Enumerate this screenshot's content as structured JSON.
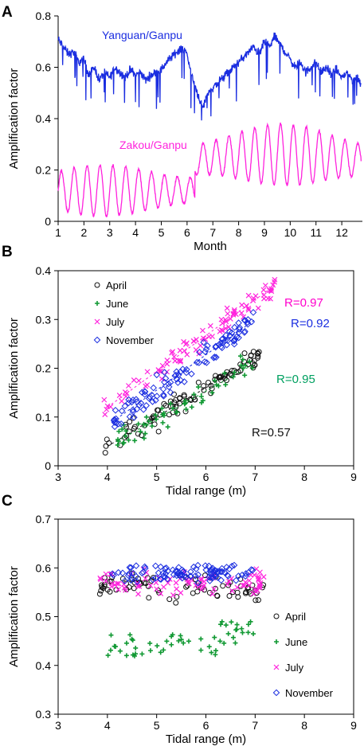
{
  "colors": {
    "blue": "#1a2de0",
    "magenta": "#ff22dd",
    "green": "#119933",
    "black": "#111111",
    "r_july": "#ff00cc",
    "r_november": "#1b2ee0",
    "r_june": "#00a060",
    "r_april": "#111111"
  },
  "chart_data": [
    {
      "panel": "A",
      "type": "line",
      "xlabel": "Month",
      "ylabel": "Amplification factor",
      "xlim": [
        1,
        12.8
      ],
      "ylim": [
        0,
        0.8
      ],
      "xticks": [
        1,
        2,
        3,
        4,
        5,
        6,
        7,
        8,
        9,
        10,
        11,
        12
      ],
      "yticks": [
        0,
        0.2,
        0.4,
        0.6,
        0.8
      ],
      "series": [
        {
          "name": "Yanguan/Ganpu",
          "color": "blue",
          "x": [
            1.0,
            1.2,
            1.4,
            1.6,
            1.8,
            2.0,
            2.2,
            2.4,
            2.6,
            2.8,
            3.0,
            3.2,
            3.4,
            3.6,
            3.8,
            4.0,
            4.2,
            4.4,
            4.6,
            4.8,
            5.0,
            5.2,
            5.4,
            5.6,
            5.8,
            6.0,
            6.2,
            6.4,
            6.6,
            6.8,
            7.0,
            7.2,
            7.4,
            7.6,
            7.8,
            8.0,
            8.2,
            8.4,
            8.6,
            8.8,
            9.0,
            9.2,
            9.4,
            9.6,
            9.8,
            10.0,
            10.2,
            10.4,
            10.6,
            10.8,
            11.0,
            11.2,
            11.4,
            11.6,
            11.8,
            12.0,
            12.2,
            12.4,
            12.6,
            12.75
          ],
          "y": [
            0.71,
            0.68,
            0.65,
            0.66,
            0.62,
            0.63,
            0.57,
            0.6,
            0.55,
            0.58,
            0.56,
            0.6,
            0.58,
            0.56,
            0.59,
            0.57,
            0.58,
            0.55,
            0.57,
            0.58,
            0.59,
            0.62,
            0.64,
            0.66,
            0.68,
            0.65,
            0.56,
            0.5,
            0.44,
            0.5,
            0.52,
            0.54,
            0.56,
            0.58,
            0.6,
            0.62,
            0.64,
            0.66,
            0.68,
            0.65,
            0.7,
            0.68,
            0.72,
            0.69,
            0.66,
            0.63,
            0.6,
            0.62,
            0.58,
            0.6,
            0.62,
            0.58,
            0.6,
            0.57,
            0.59,
            0.56,
            0.58,
            0.55,
            0.56,
            0.53
          ]
        },
        {
          "name": "Zakou/Ganpu",
          "color": "magenta",
          "period": 0.5,
          "mean_before_6_3": 0.12,
          "amplitude_before_6_3": 0.1,
          "mean_after_6_3": 0.24,
          "amplitude_after_6_3": 0.12,
          "peaks": [
            [
              1.8,
              0.2
            ],
            [
              2.8,
              0.25
            ],
            [
              4.3,
              0.22
            ],
            [
              5.3,
              0.22
            ],
            [
              8.3,
              0.36
            ],
            [
              9.3,
              0.4
            ],
            [
              10.2,
              0.34
            ],
            [
              12.6,
              0.22
            ]
          ],
          "troughs": [
            [
              1.3,
              0.02
            ],
            [
              3.3,
              0.0
            ],
            [
              4.7,
              0.0
            ],
            [
              5.8,
              0.02
            ],
            [
              7.0,
              0.08
            ],
            [
              9.0,
              0.1
            ],
            [
              11.0,
              0.07
            ],
            [
              12.3,
              0.06
            ]
          ]
        }
      ]
    },
    {
      "panel": "B",
      "type": "scatter",
      "xlabel": "Tidal range (m)",
      "ylabel": "Amplification factor",
      "xlim": [
        3,
        9
      ],
      "ylim": [
        0,
        0.4
      ],
      "xticks": [
        3,
        4,
        5,
        6,
        7,
        8,
        9
      ],
      "yticks": [
        0,
        0.1,
        0.2,
        0.3,
        0.4
      ],
      "legend": "top-left",
      "series": [
        {
          "name": "April",
          "marker": "circle",
          "color": "black",
          "x_range": [
            3.9,
            7.1
          ],
          "fit": [
            [
              4.0,
              0.04
            ],
            [
              7.0,
              0.22
            ]
          ],
          "R": "R=0.57"
        },
        {
          "name": "June",
          "marker": "plus",
          "color": "green",
          "x_range": [
            4.2,
            7.1
          ],
          "fit": [
            [
              4.2,
              0.05
            ],
            [
              7.0,
              0.21
            ]
          ],
          "R": "R=0.95"
        },
        {
          "name": "July",
          "marker": "x",
          "color": "magenta",
          "x_range": [
            3.9,
            7.4
          ],
          "fit": [
            [
              4.0,
              0.12
            ],
            [
              7.4,
              0.37
            ]
          ],
          "R": "R=0.97"
        },
        {
          "name": "November",
          "marker": "diamond",
          "color": "blue",
          "x_range": [
            4.1,
            7.0
          ],
          "fit": [
            [
              4.1,
              0.09
            ],
            [
              7.0,
              0.3
            ]
          ],
          "R": "R=0.92"
        }
      ]
    },
    {
      "panel": "C",
      "type": "scatter",
      "xlabel": "Tidal range (m)",
      "ylabel": "Amplification factor",
      "xlim": [
        3,
        9
      ],
      "ylim": [
        0.3,
        0.7
      ],
      "xticks": [
        3,
        4,
        5,
        6,
        7,
        8,
        9
      ],
      "yticks": [
        0.3,
        0.4,
        0.5,
        0.6,
        0.7
      ],
      "legend": "right",
      "series": [
        {
          "name": "April",
          "marker": "circle",
          "color": "black",
          "x_range": [
            3.8,
            7.2
          ],
          "y_mean": 0.56,
          "y_spread": 0.03
        },
        {
          "name": "June",
          "marker": "plus",
          "color": "green",
          "x_range": [
            4.0,
            7.0
          ],
          "y_mean": 0.44,
          "y_spread": 0.03
        },
        {
          "name": "July",
          "marker": "x",
          "color": "magenta",
          "x_range": [
            3.8,
            7.4
          ],
          "y_mean": 0.57,
          "y_spread": 0.025
        },
        {
          "name": "November",
          "marker": "diamond",
          "color": "blue",
          "x_range": [
            4.1,
            7.0
          ],
          "y_mean": 0.59,
          "y_spread": 0.02
        }
      ]
    }
  ]
}
